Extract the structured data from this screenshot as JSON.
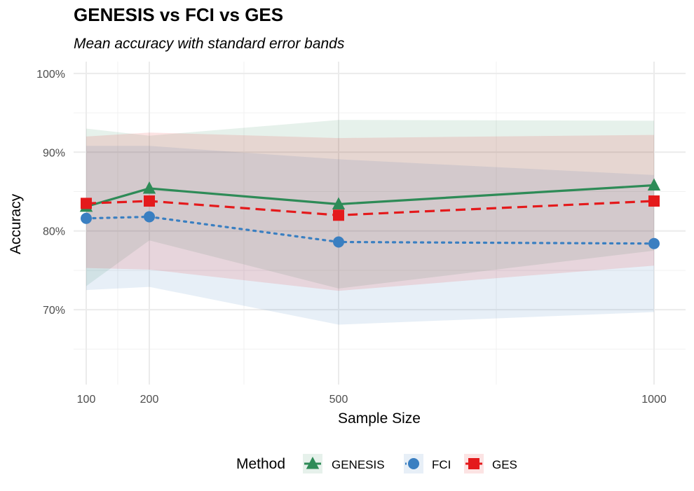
{
  "chart_data": {
    "type": "line",
    "title": "GENESIS vs FCI vs GES",
    "subtitle": "Mean accuracy with standard error bands",
    "xlabel": "Sample Size",
    "ylabel": "Accuracy",
    "x": [
      100,
      200,
      500,
      1000
    ],
    "x_ticks": [
      "100",
      "200",
      "500",
      "1000"
    ],
    "xlim": [
      80,
      1050
    ],
    "ylim": [
      0.605,
      1.015
    ],
    "y_ticks": [
      0.7,
      0.8,
      0.9,
      1.0
    ],
    "y_tick_labels": [
      "70%",
      "80%",
      "90%",
      "100%"
    ],
    "grid": true,
    "legend": {
      "title": "Method",
      "position": "bottom"
    },
    "series": [
      {
        "name": "GENESIS",
        "color": "#2e8b57",
        "marker": "triangle",
        "line_style": "solid",
        "values": [
          0.831,
          0.854,
          0.834,
          0.858
        ],
        "lower": [
          0.73,
          0.788,
          0.727,
          0.775
        ],
        "upper": [
          0.93,
          0.921,
          0.941,
          0.94
        ]
      },
      {
        "name": "FCI",
        "color": "#3a7fc1",
        "marker": "circle",
        "line_style": "dotted",
        "values": [
          0.816,
          0.818,
          0.786,
          0.784
        ],
        "lower": [
          0.725,
          0.729,
          0.681,
          0.697
        ],
        "upper": [
          0.908,
          0.908,
          0.891,
          0.871
        ]
      },
      {
        "name": "GES",
        "color": "#e41a1c",
        "marker": "square",
        "line_style": "dashed",
        "values": [
          0.835,
          0.838,
          0.82,
          0.838
        ],
        "lower": [
          0.753,
          0.751,
          0.724,
          0.756
        ],
        "upper": [
          0.92,
          0.925,
          0.918,
          0.922
        ]
      }
    ]
  }
}
